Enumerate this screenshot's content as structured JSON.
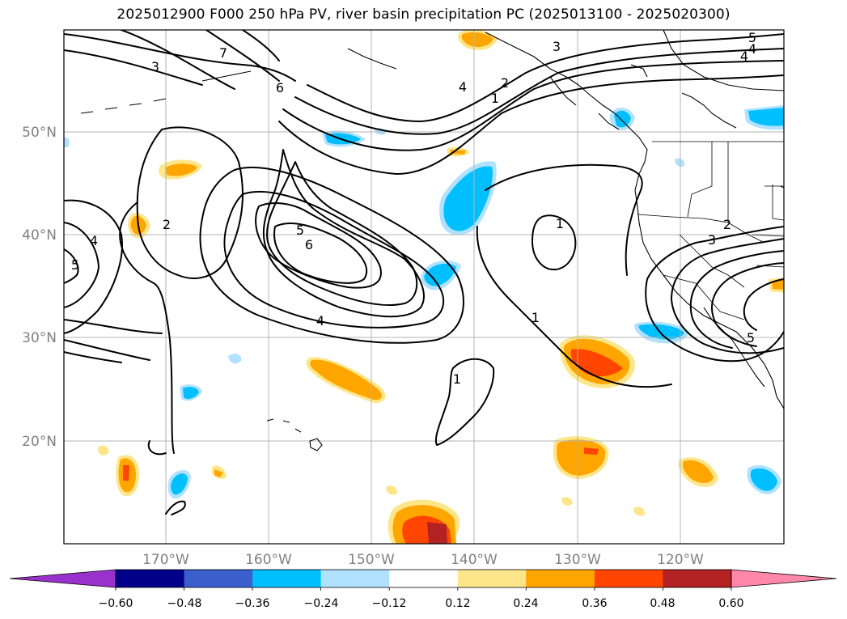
{
  "title": "2025012900 F000 250 hPa PV, river basin precipitation PC (2025013100 - 2025020300)",
  "map": {
    "lat_ticks": [
      "50°N",
      "40°N",
      "30°N",
      "20°N"
    ],
    "lon_ticks": [
      "170°W",
      "160°W",
      "150°W",
      "140°W",
      "130°W",
      "120°W"
    ],
    "contour_labels": [
      "7",
      "6",
      "3",
      "3",
      "2",
      "1",
      "4",
      "5",
      "4",
      "2",
      "4",
      "5",
      "5",
      "6",
      "4",
      "1",
      "1",
      "1",
      "2",
      "3",
      "5",
      "4"
    ]
  },
  "colorbar": {
    "ticks": [
      "−0.60",
      "−0.48",
      "−0.36",
      "−0.24",
      "−0.12",
      "0.12",
      "0.24",
      "0.36",
      "0.48",
      "0.60"
    ],
    "colors": [
      "#9932cc",
      "#00008b",
      "#3a5fcd",
      "#00bfff",
      "#b0e2ff",
      "#ffffff",
      "#fde68a",
      "#ffa500",
      "#ff4500",
      "#b22222",
      "#ff88aa"
    ]
  }
}
